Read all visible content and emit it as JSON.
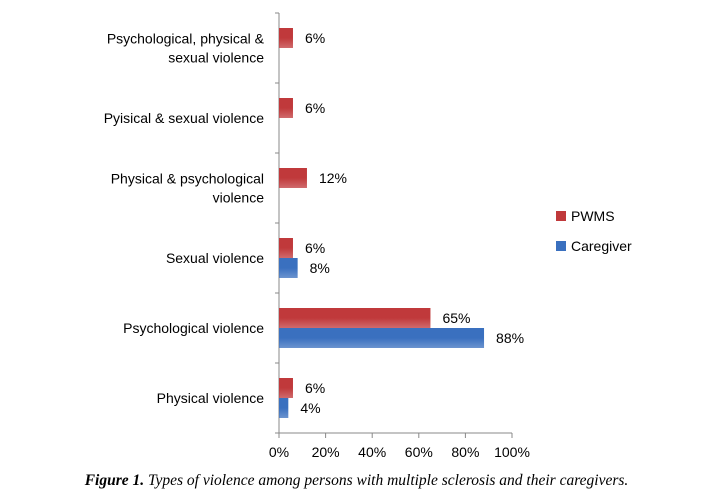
{
  "chart_data": {
    "type": "bar",
    "orientation": "horizontal",
    "categories": [
      "Physical violence",
      "Psychological violence",
      "Sexual violence",
      "Physical & psychological violence",
      "Pyisical & sexual violence",
      "Psychological, physical & sexual violence"
    ],
    "category_lines": [
      [
        "Physical violence"
      ],
      [
        "Psychological violence"
      ],
      [
        "Sexual violence"
      ],
      [
        "Physical & psychological",
        "violence"
      ],
      [
        "Pyisical & sexual violence"
      ],
      [
        "Psychological, physical &",
        "sexual violence"
      ]
    ],
    "series": [
      {
        "name": "PWMS",
        "color": "#c0393b",
        "values": [
          6,
          65,
          6,
          12,
          6,
          6
        ]
      },
      {
        "name": "Caregiver",
        "color": "#3a70bf",
        "values": [
          4,
          88,
          8,
          null,
          null,
          null
        ]
      }
    ],
    "xlim": [
      0,
      100
    ],
    "xticks": [
      "0%",
      "20%",
      "40%",
      "60%",
      "80%",
      "100%"
    ],
    "legend_position": "right",
    "grid": false,
    "value_suffix": "%"
  },
  "caption": {
    "label": "Figure 1.",
    "text": " Types of violence among persons with multiple sclerosis and their caregivers."
  }
}
